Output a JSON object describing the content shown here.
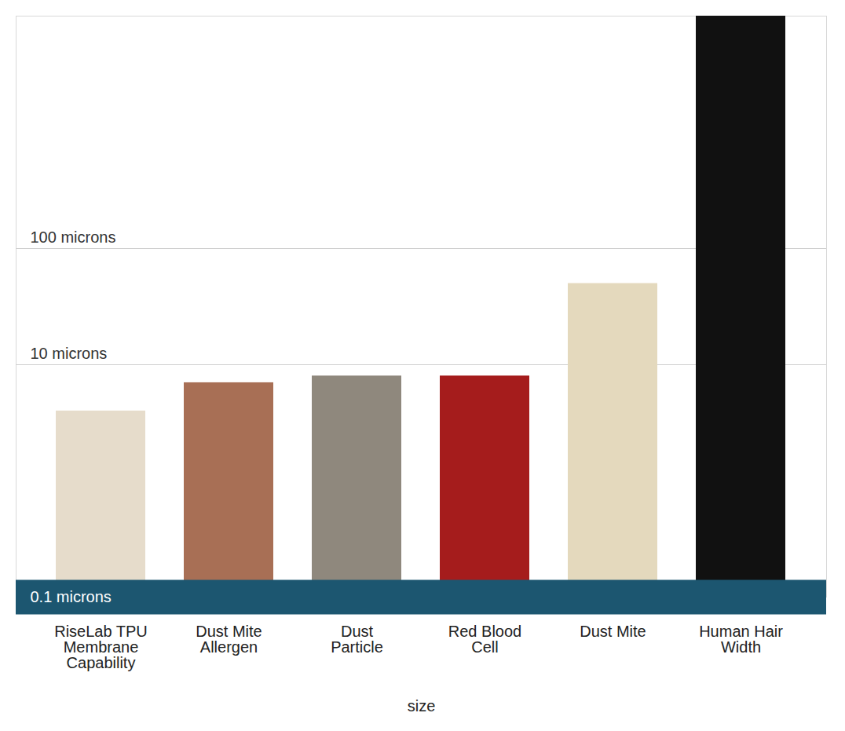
{
  "chart_data": {
    "type": "bar",
    "x_label": "size",
    "categories": [
      "RiseLab TPU Membrane Capability",
      "Dust Mite Allergen",
      "Dust Particle",
      "Red Blood Cell",
      "Dust Mite",
      "Human Hair Width"
    ],
    "values": [
      4,
      7,
      8,
      8,
      50,
      10000
    ],
    "colors": [
      "#e6dccb",
      "#a86f55",
      "#8f887d",
      "#a51c1c",
      "#e4d9bd",
      "#111111"
    ],
    "log": "y",
    "ylim": [
      0.1,
      10000
    ],
    "yticks": [
      {
        "value": 0.1,
        "label": "0.1 microns"
      },
      {
        "value": 10,
        "label": "10 microns"
      },
      {
        "value": 100,
        "label": "100 microns"
      }
    ],
    "grid": true
  }
}
